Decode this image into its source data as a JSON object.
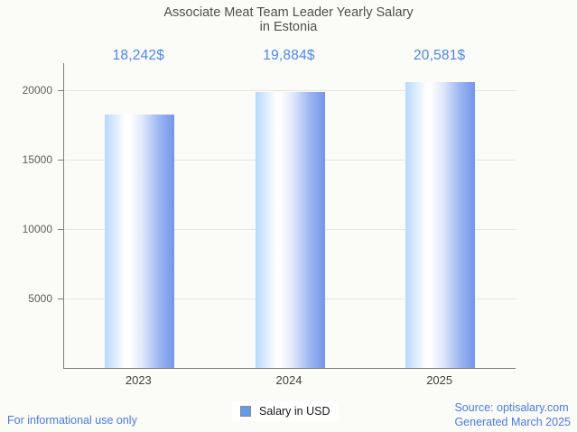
{
  "title": {
    "line1": "Associate Meat Team Leader Yearly Salary",
    "line2": "in Estonia"
  },
  "chart_data": {
    "type": "bar",
    "title": "Associate Meat Team Leader Yearly Salary in Estonia",
    "categories": [
      "2023",
      "2024",
      "2025"
    ],
    "series": [
      {
        "name": "Salary in USD",
        "values": [
          18242,
          19884,
          20581
        ]
      }
    ],
    "value_labels": [
      "18,242$",
      "19,884$",
      "20,581$"
    ],
    "xlabel": "",
    "ylabel": "",
    "ylim": [
      0,
      21950
    ],
    "yticks": [
      5000,
      10000,
      15000,
      20000
    ],
    "ytick_labels": [
      "5000",
      "10000",
      "15000",
      "20000"
    ],
    "grid": true,
    "legend_position": "bottom",
    "bar_color_gradient": [
      "#b7d9fc",
      "#ffffff",
      "#7495e9"
    ],
    "value_label_color": "#4c86ee"
  },
  "legend": {
    "label": "Salary in USD",
    "swatch_color": "#639ce8"
  },
  "footer": {
    "left": "For informational use only",
    "source": "Source: optisalary.com",
    "generated": "Generated March 2025"
  },
  "colors": {
    "background": "#fbfbf8",
    "title_text": "#4e4e50",
    "axis": "#7f7f7f",
    "gridline": "#e5e5e2",
    "tick_text": "#5c5c5e",
    "footer_blue": "#4a7be0"
  }
}
